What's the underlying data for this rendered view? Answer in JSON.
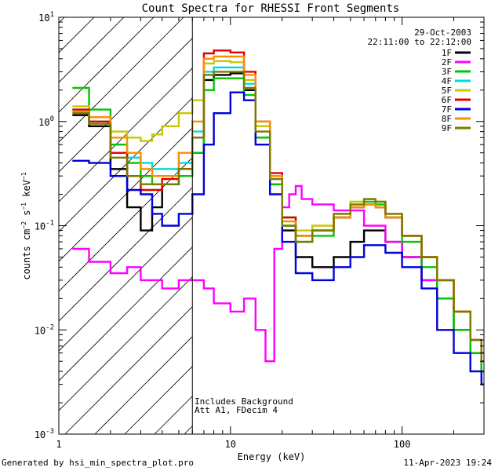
{
  "chart_data": {
    "type": "line",
    "title": "Count Spectra for RHESSI Front Segments",
    "date": "29-Oct-2003",
    "time_range": "22:11:00 to 22:12:00",
    "xlabel": "Energy (keV)",
    "ylabel_base": "counts cm",
    "ylabel_mid": " s",
    "ylabel_end": " keV",
    "ylabel_exp": "−2",
    "ylabel_exp2": "−1",
    "ylabel_exp3": "−1",
    "xscale": "log",
    "yscale": "log",
    "xlim": [
      1,
      300
    ],
    "ylim": [
      0.001,
      10
    ],
    "x_ticks": [
      {
        "v": 1,
        "label": "1"
      },
      {
        "v": 10,
        "label": "10"
      },
      {
        "v": 100,
        "label": "100"
      }
    ],
    "y_ticks": [
      {
        "v": 10,
        "base": "10",
        "exp": "1"
      },
      {
        "v": 1,
        "base": "10",
        "exp": "0"
      },
      {
        "v": 0.1,
        "base": "10",
        "exp": "-1"
      },
      {
        "v": 0.01,
        "base": "10",
        "exp": "-2"
      },
      {
        "v": 0.001,
        "base": "10",
        "exp": "-3"
      }
    ],
    "hatched_region_end": 6,
    "annotations": [
      "Includes Background",
      "Att A1, FDecim 4"
    ],
    "legend_position": "top-right",
    "series": [
      {
        "name": "1F",
        "color": "#000000",
        "points": [
          [
            1.2,
            1.15
          ],
          [
            1.5,
            0.9
          ],
          [
            2.0,
            0.35
          ],
          [
            2.5,
            0.15
          ],
          [
            3.0,
            0.09
          ],
          [
            3.5,
            0.15
          ],
          [
            4.0,
            0.25
          ],
          [
            5.0,
            0.35
          ],
          [
            6.0,
            0.5
          ],
          [
            7.0,
            2.5
          ],
          [
            8.0,
            2.8
          ],
          [
            10.0,
            2.9
          ],
          [
            12.0,
            2.0
          ],
          [
            14.0,
            0.7
          ],
          [
            17.0,
            0.25
          ],
          [
            20.0,
            0.09
          ],
          [
            24.0,
            0.05
          ],
          [
            30.0,
            0.04
          ],
          [
            40.0,
            0.05
          ],
          [
            50.0,
            0.07
          ],
          [
            60.0,
            0.09
          ],
          [
            70.0,
            0.09
          ],
          [
            80.0,
            0.07
          ],
          [
            100.0,
            0.05
          ],
          [
            130.0,
            0.03
          ],
          [
            160.0,
            0.02
          ],
          [
            200.0,
            0.01
          ],
          [
            250.0,
            0.006
          ],
          [
            290.0,
            0.004
          ]
        ]
      },
      {
        "name": "2F",
        "color": "#ff00ff",
        "points": [
          [
            1.2,
            0.06
          ],
          [
            1.5,
            0.045
          ],
          [
            2.0,
            0.035
          ],
          [
            2.5,
            0.04
          ],
          [
            3.0,
            0.03
          ],
          [
            4.0,
            0.025
          ],
          [
            5.0,
            0.03
          ],
          [
            6.0,
            0.03
          ],
          [
            7.0,
            0.025
          ],
          [
            8.0,
            0.018
          ],
          [
            10.0,
            0.015
          ],
          [
            12.0,
            0.02
          ],
          [
            14.0,
            0.01
          ],
          [
            16.0,
            0.005
          ],
          [
            18.0,
            0.06
          ],
          [
            20.0,
            0.15
          ],
          [
            22.0,
            0.2
          ],
          [
            24.0,
            0.24
          ],
          [
            26.0,
            0.18
          ],
          [
            30.0,
            0.16
          ],
          [
            40.0,
            0.14
          ],
          [
            60.0,
            0.1
          ],
          [
            80.0,
            0.07
          ],
          [
            100.0,
            0.05
          ],
          [
            130.0,
            0.03
          ],
          [
            160.0,
            0.02
          ],
          [
            200.0,
            0.015
          ],
          [
            250.0,
            0.008
          ],
          [
            290.0,
            0.006
          ]
        ]
      },
      {
        "name": "3F",
        "color": "#00c800",
        "points": [
          [
            1.2,
            2.1
          ],
          [
            1.5,
            1.3
          ],
          [
            2.0,
            0.6
          ],
          [
            2.5,
            0.4
          ],
          [
            3.0,
            0.3
          ],
          [
            3.5,
            0.25
          ],
          [
            4.0,
            0.25
          ],
          [
            5.0,
            0.3
          ],
          [
            6.0,
            0.5
          ],
          [
            7.0,
            2.0
          ],
          [
            8.0,
            2.6
          ],
          [
            10.0,
            2.6
          ],
          [
            12.0,
            1.8
          ],
          [
            14.0,
            0.7
          ],
          [
            17.0,
            0.25
          ],
          [
            20.0,
            0.1
          ],
          [
            24.0,
            0.07
          ],
          [
            30.0,
            0.08
          ],
          [
            40.0,
            0.12
          ],
          [
            50.0,
            0.15
          ],
          [
            60.0,
            0.17
          ],
          [
            70.0,
            0.16
          ],
          [
            80.0,
            0.12
          ],
          [
            100.0,
            0.07
          ],
          [
            130.0,
            0.04
          ],
          [
            160.0,
            0.02
          ],
          [
            200.0,
            0.01
          ],
          [
            250.0,
            0.006
          ],
          [
            290.0,
            0.004
          ]
        ]
      },
      {
        "name": "4F",
        "color": "#00dcdc",
        "points": [
          [
            1.2,
            1.3
          ],
          [
            1.5,
            1.0
          ],
          [
            2.0,
            0.5
          ],
          [
            2.5,
            0.45
          ],
          [
            3.0,
            0.4
          ],
          [
            3.5,
            0.35
          ],
          [
            4.0,
            0.35
          ],
          [
            5.0,
            0.4
          ],
          [
            6.0,
            0.8
          ],
          [
            7.0,
            3.0
          ],
          [
            8.0,
            3.3
          ],
          [
            10.0,
            3.3
          ],
          [
            12.0,
            2.3
          ],
          [
            14.0,
            0.9
          ],
          [
            17.0,
            0.3
          ],
          [
            20.0,
            0.12
          ],
          [
            24.0,
            0.08
          ],
          [
            30.0,
            0.09
          ],
          [
            40.0,
            0.12
          ],
          [
            50.0,
            0.15
          ],
          [
            60.0,
            0.16
          ],
          [
            70.0,
            0.15
          ],
          [
            80.0,
            0.12
          ],
          [
            100.0,
            0.08
          ],
          [
            130.0,
            0.05
          ],
          [
            160.0,
            0.03
          ],
          [
            200.0,
            0.015
          ],
          [
            250.0,
            0.008
          ],
          [
            290.0,
            0.005
          ]
        ]
      },
      {
        "name": "5F",
        "color": "#c8c800",
        "points": [
          [
            1.2,
            1.4
          ],
          [
            1.5,
            1.1
          ],
          [
            2.0,
            0.8
          ],
          [
            2.5,
            0.7
          ],
          [
            3.0,
            0.65
          ],
          [
            3.5,
            0.75
          ],
          [
            4.0,
            0.9
          ],
          [
            5.0,
            1.2
          ],
          [
            6.0,
            1.6
          ],
          [
            7.0,
            3.6
          ],
          [
            8.0,
            3.8
          ],
          [
            10.0,
            3.7
          ],
          [
            12.0,
            2.5
          ],
          [
            14.0,
            0.9
          ],
          [
            17.0,
            0.3
          ],
          [
            20.0,
            0.12
          ],
          [
            24.0,
            0.09
          ],
          [
            30.0,
            0.1
          ],
          [
            40.0,
            0.13
          ],
          [
            50.0,
            0.17
          ],
          [
            60.0,
            0.18
          ],
          [
            70.0,
            0.17
          ],
          [
            80.0,
            0.13
          ],
          [
            100.0,
            0.08
          ],
          [
            130.0,
            0.05
          ],
          [
            160.0,
            0.03
          ],
          [
            200.0,
            0.015
          ],
          [
            250.0,
            0.008
          ],
          [
            290.0,
            0.005
          ]
        ]
      },
      {
        "name": "6F",
        "color": "#e00000",
        "points": [
          [
            1.2,
            1.3
          ],
          [
            1.5,
            1.0
          ],
          [
            2.0,
            0.5
          ],
          [
            2.5,
            0.3
          ],
          [
            3.0,
            0.22
          ],
          [
            3.5,
            0.22
          ],
          [
            4.0,
            0.28
          ],
          [
            5.0,
            0.35
          ],
          [
            6.0,
            0.7
          ],
          [
            7.0,
            4.5
          ],
          [
            8.0,
            4.8
          ],
          [
            10.0,
            4.6
          ],
          [
            12.0,
            3.0
          ],
          [
            14.0,
            1.0
          ],
          [
            17.0,
            0.32
          ],
          [
            20.0,
            0.12
          ],
          [
            24.0,
            0.08
          ],
          [
            30.0,
            0.09
          ],
          [
            40.0,
            0.12
          ],
          [
            50.0,
            0.15
          ],
          [
            60.0,
            0.16
          ],
          [
            70.0,
            0.15
          ],
          [
            80.0,
            0.12
          ],
          [
            100.0,
            0.08
          ],
          [
            130.0,
            0.05
          ],
          [
            160.0,
            0.03
          ],
          [
            200.0,
            0.015
          ],
          [
            250.0,
            0.008
          ],
          [
            290.0,
            0.005
          ]
        ]
      },
      {
        "name": "7F",
        "color": "#0000dc",
        "points": [
          [
            1.2,
            0.42
          ],
          [
            1.5,
            0.4
          ],
          [
            2.0,
            0.3
          ],
          [
            2.5,
            0.22
          ],
          [
            3.0,
            0.2
          ],
          [
            3.5,
            0.13
          ],
          [
            4.0,
            0.1
          ],
          [
            5.0,
            0.13
          ],
          [
            6.0,
            0.2
          ],
          [
            7.0,
            0.6
          ],
          [
            8.0,
            1.2
          ],
          [
            10.0,
            1.9
          ],
          [
            12.0,
            1.6
          ],
          [
            14.0,
            0.6
          ],
          [
            17.0,
            0.2
          ],
          [
            20.0,
            0.07
          ],
          [
            24.0,
            0.035
          ],
          [
            30.0,
            0.03
          ],
          [
            40.0,
            0.04
          ],
          [
            50.0,
            0.05
          ],
          [
            60.0,
            0.065
          ],
          [
            70.0,
            0.065
          ],
          [
            80.0,
            0.055
          ],
          [
            100.0,
            0.04
          ],
          [
            130.0,
            0.025
          ],
          [
            160.0,
            0.01
          ],
          [
            200.0,
            0.006
          ],
          [
            250.0,
            0.004
          ],
          [
            290.0,
            0.003
          ]
        ]
      },
      {
        "name": "8F",
        "color": "#ff8c00",
        "points": [
          [
            1.2,
            1.25
          ],
          [
            1.5,
            1.1
          ],
          [
            2.0,
            0.7
          ],
          [
            2.5,
            0.5
          ],
          [
            3.0,
            0.35
          ],
          [
            3.5,
            0.3
          ],
          [
            4.0,
            0.3
          ],
          [
            5.0,
            0.5
          ],
          [
            6.0,
            1.0
          ],
          [
            7.0,
            4.0
          ],
          [
            8.0,
            4.2
          ],
          [
            10.0,
            4.2
          ],
          [
            12.0,
            2.8
          ],
          [
            14.0,
            1.0
          ],
          [
            17.0,
            0.3
          ],
          [
            20.0,
            0.11
          ],
          [
            24.0,
            0.08
          ],
          [
            30.0,
            0.09
          ],
          [
            40.0,
            0.12
          ],
          [
            50.0,
            0.15
          ],
          [
            60.0,
            0.16
          ],
          [
            70.0,
            0.15
          ],
          [
            80.0,
            0.12
          ],
          [
            100.0,
            0.08
          ],
          [
            130.0,
            0.05
          ],
          [
            160.0,
            0.03
          ],
          [
            200.0,
            0.015
          ],
          [
            250.0,
            0.008
          ],
          [
            290.0,
            0.005
          ]
        ]
      },
      {
        "name": "9F",
        "color": "#7a7a00",
        "points": [
          [
            1.2,
            1.2
          ],
          [
            1.5,
            0.95
          ],
          [
            2.0,
            0.45
          ],
          [
            2.5,
            0.3
          ],
          [
            3.0,
            0.25
          ],
          [
            3.5,
            0.25
          ],
          [
            4.0,
            0.25
          ],
          [
            5.0,
            0.35
          ],
          [
            6.0,
            0.7
          ],
          [
            7.0,
            2.8
          ],
          [
            8.0,
            3.0
          ],
          [
            10.0,
            3.0
          ],
          [
            12.0,
            2.1
          ],
          [
            14.0,
            0.8
          ],
          [
            17.0,
            0.28
          ],
          [
            20.0,
            0.1
          ],
          [
            24.0,
            0.07
          ],
          [
            30.0,
            0.09
          ],
          [
            40.0,
            0.13
          ],
          [
            50.0,
            0.16
          ],
          [
            60.0,
            0.18
          ],
          [
            70.0,
            0.17
          ],
          [
            80.0,
            0.13
          ],
          [
            100.0,
            0.08
          ],
          [
            130.0,
            0.05
          ],
          [
            160.0,
            0.03
          ],
          [
            200.0,
            0.015
          ],
          [
            250.0,
            0.008
          ],
          [
            290.0,
            0.005
          ]
        ]
      }
    ]
  },
  "footer": {
    "generated_by": "Generated by hsi_min_spectra_plot.pro",
    "timestamp": "11-Apr-2023 19:24"
  }
}
